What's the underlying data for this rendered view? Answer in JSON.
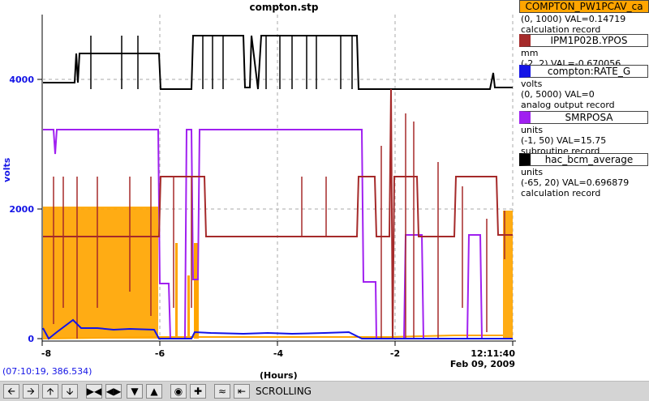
{
  "plot": {
    "title": "compton.stp",
    "ylabel": "volts",
    "yticks": [
      "4000",
      "2000",
      "0"
    ],
    "xticks": [
      "-8",
      "-6",
      "-4",
      "-2"
    ],
    "xlabel": "(Hours)",
    "time_now": "12:11:40",
    "time_date": "Feb 09, 2009",
    "cursor_readout": "(07:10:19, 386.534)"
  },
  "legend": [
    {
      "name": "COMPTON_PW1PCAV_ca",
      "color": "#ffa500",
      "line1": "(0, 1000) VAL=0.14719",
      "line2": "calculation record"
    },
    {
      "name": "IPM1P02B.YPOS",
      "color": "#a52a2a",
      "line1": "mm",
      "line2": "(-2, 2) VAL=-0.670056"
    },
    {
      "name": "compton:RATE_G",
      "color": "#1414e6",
      "line1": "volts",
      "line2": "(0, 5000) VAL=0",
      "line3": "analog output record"
    },
    {
      "name": "SMRPOSA",
      "color": "#a020f0",
      "line1": "units",
      "line2": "(-1, 50) VAL=15.75",
      "line3": "subroutine record"
    },
    {
      "name": "hac_bcm_average",
      "color": "#000000",
      "line1": "units",
      "line2": "(-65, 20) VAL=0.696879",
      "line3": "calculation record"
    }
  ],
  "toolbar": {
    "mode_label": "SCROLLING",
    "buttons": [
      "arrow-left-icon",
      "arrow-right-icon",
      "arrow-up-icon",
      "arrow-down-icon",
      "zoom-in-horizontal-icon",
      "zoom-out-horizontal-icon",
      "zoom-in-vertical-icon",
      "zoom-out-vertical-icon",
      "record-icon",
      "plus-icon",
      "autoscale-icon",
      "scroll-mode-icon"
    ]
  },
  "colors": {
    "orange": "#ffa500",
    "brown": "#a52a2a",
    "blue": "#1414e6",
    "purple": "#a020f0",
    "black": "#000000"
  }
}
